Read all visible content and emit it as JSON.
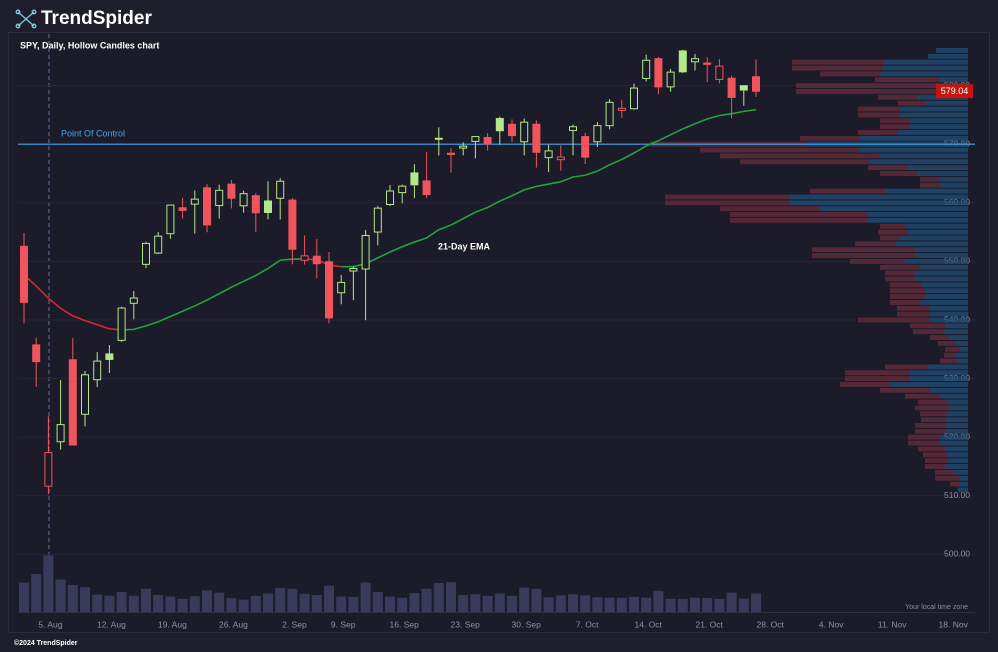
{
  "chart_data": {
    "type": "candlestick",
    "logo": "TrendSpider",
    "title": "SPY, Daily, Hollow Candles chart",
    "footer": "©2024 TrendSpider",
    "timezone_note": "Your local time zone",
    "categories": [
      null,
      null,
      "5. Aug",
      null,
      null,
      null,
      null,
      "12. Aug",
      null,
      null,
      null,
      null,
      "19. Aug",
      null,
      null,
      null,
      null,
      "26. Aug",
      null,
      null,
      null,
      null,
      "2. Sep",
      null,
      null,
      null,
      "9. Sep",
      null,
      null,
      null,
      null,
      "16. Sep",
      null,
      null,
      null,
      null,
      "23. Sep",
      null,
      null,
      null,
      null,
      "30. Sep",
      null,
      null,
      null,
      null,
      "7. Oct",
      null,
      null,
      null,
      null,
      "14. Oct",
      null,
      null,
      null,
      null,
      "21. Oct",
      null,
      null,
      null,
      null,
      "28. Oct",
      null,
      null,
      null,
      null,
      "4. Nov",
      null,
      null,
      null,
      null,
      "11. Nov",
      null,
      null,
      null,
      null,
      "18. Nov",
      null
    ],
    "open": [
      552.57,
      535.75,
      511.64,
      519.22,
      533.21,
      523.91,
      529.81,
      534.21,
      536.53,
      542.85,
      549.5,
      551.42,
      554.73,
      559.15,
      559.77,
      562.56,
      559.53,
      563.18,
      559.49,
      561.21,
      560.31,
      560.77,
      560.47,
      550.2,
      550.89,
      549.94,
      544.65,
      548.36,
      548.7,
      555.01,
      559.71,
      561.74,
      565.1,
      563.74,
      571.01,
      568.46,
      569.34,
      570.48,
      571.14,
      574.38,
      573.39,
      570.42,
      573.4,
      567.71,
      567.36,
      572.35,
      571.3,
      570.42,
      573.16,
      575.77,
      576.05,
      581.22,
      584.59,
      579.78,
      585.91,
      584.07,
      583.85,
      581.05,
      581.26,
      579.98,
      581.51,
      null,
      null,
      null,
      null,
      null,
      null,
      null,
      null,
      null,
      null,
      null,
      null,
      null,
      null,
      null,
      null,
      null
    ],
    "high": [
      554.87,
      536.99,
      523.58,
      529.75,
      536.95,
      531.29,
      534.51,
      535.73,
      542.28,
      544.96,
      553.36,
      555.02,
      559.61,
      560.84,
      562.11,
      563.18,
      563.09,
      563.91,
      562.06,
      561.65,
      563.68,
      564.2,
      560.81,
      554.43,
      553.8,
      551.6,
      547.71,
      549.15,
      555.36,
      559.4,
      563.03,
      563.11,
      566.58,
      568.69,
      572.88,
      569.31,
      570.33,
      571.36,
      571.89,
      574.71,
      574.22,
      574.38,
      574.06,
      569.9,
      569.8,
      573.36,
      571.96,
      573.78,
      577.71,
      577.58,
      580.33,
      585.27,
      584.9,
      582.83,
      586.12,
      585.39,
      584.85,
      584.5,
      581.71,
      580.06,
      584.46,
      null,
      null,
      null,
      null,
      null,
      null,
      null,
      null,
      null,
      null,
      null,
      null,
      null,
      null,
      null,
      null,
      null
    ],
    "low": [
      539.43,
      528.6,
      510.27,
      517.87,
      518.66,
      521.84,
      528.56,
      530.95,
      536.28,
      540.12,
      548.88,
      551.26,
      553.86,
      557.33,
      554.73,
      554.98,
      557.29,
      559.05,
      558.32,
      555.04,
      557.18,
      557.14,
      549.51,
      549.46,
      547.1,
      539.44,
      542.68,
      543.38,
      539.96,
      552.74,
      559.45,
      559.9,
      560.79,
      560.83,
      568.08,
      565.17,
      568.1,
      567.6,
      568.91,
      569.9,
      570.42,
      568.08,
      566.0,
      565.27,
      565.49,
      568.1,
      566.63,
      569.53,
      572.55,
      574.49,
      575.91,
      580.73,
      578.54,
      578.96,
      582.16,
      582.58,
      580.6,
      580.38,
      574.41,
      576.57,
      578.08,
      null,
      null,
      null,
      null,
      null,
      null,
      null,
      null,
      null,
      null,
      null,
      null,
      null,
      null,
      null,
      null,
      null
    ],
    "close": [
      543.01,
      532.9,
      517.38,
      522.15,
      518.66,
      530.65,
      532.99,
      533.27,
      542.04,
      543.75,
      553.07,
      554.31,
      559.61,
      558.7,
      560.62,
      556.22,
      562.13,
      560.79,
      561.56,
      558.3,
      558.35,
      563.68,
      552.08,
      550.95,
      549.61,
      540.36,
      546.41,
      548.79,
      554.42,
      559.09,
      562.01,
      562.84,
      563.07,
      561.4,
      570.98,
      568.25,
      569.67,
      571.3,
      570.04,
      572.3,
      571.47,
      573.76,
      568.62,
      568.86,
      567.82,
      572.98,
      567.8,
      573.17,
      577.14,
      576.13,
      579.58,
      584.32,
      579.78,
      582.3,
      582.35,
      584.59,
      583.63,
      583.32,
      577.99,
      579.24,
      579.04,
      null,
      null,
      null,
      null,
      null,
      null,
      null,
      null,
      null,
      null,
      null,
      null,
      null,
      null,
      null,
      null,
      null
    ],
    "volume": [
      76,
      98,
      146,
      84,
      70,
      64,
      45,
      42,
      52,
      42,
      60,
      44,
      40,
      34,
      41,
      56,
      50,
      36,
      32,
      42,
      48,
      62,
      60,
      47,
      44,
      68,
      40,
      39,
      76,
      52,
      40,
      37,
      49,
      60,
      75,
      77,
      44,
      46,
      42,
      48,
      42,
      63,
      60,
      38,
      43,
      46,
      43,
      38,
      37,
      37,
      39,
      37,
      55,
      34,
      34,
      37,
      36,
      34,
      50,
      35,
      48,
      null,
      null,
      null,
      null,
      null,
      null,
      null,
      null,
      null,
      null,
      null,
      null,
      null,
      null,
      null,
      null,
      null
    ],
    "vlim": [
      0,
      150
    ],
    "ema": {
      "name": "21-Day EMA",
      "up_color": "#22a33c",
      "down_color": "#d8282c",
      "values": [
        547.7,
        545.8,
        543.7,
        542.0,
        540.7,
        539.9,
        539.2,
        538.5,
        538.3,
        538.4,
        539.0,
        539.7,
        540.6,
        541.5,
        542.4,
        543.4,
        544.5,
        545.6,
        546.6,
        547.6,
        548.8,
        550.2,
        550.4,
        550.4,
        550.3,
        549.4,
        549.1,
        549.1,
        549.6,
        550.6,
        551.6,
        552.5,
        553.3,
        554.0,
        555.4,
        556.2,
        557.3,
        558.4,
        559.2,
        560.3,
        561.2,
        562.2,
        562.8,
        563.2,
        563.6,
        564.4,
        564.7,
        565.4,
        566.5,
        567.4,
        568.5,
        569.7,
        570.6,
        571.6,
        572.6,
        573.5,
        574.3,
        574.9,
        575.2,
        575.6,
        575.9,
        null,
        null,
        null,
        null,
        null,
        null,
        null,
        null,
        null,
        null,
        null,
        null,
        null,
        null,
        null,
        null,
        null
      ]
    },
    "poc": {
      "label": "Point Of Control",
      "value": 570,
      "color": "#3fa6ec"
    },
    "up_color": "#b3e98a",
    "down_color": "#f0555c",
    "volume_color": "#3a3b5a",
    "profile": {
      "prices": [
        586,
        585,
        584,
        583,
        582,
        581,
        580,
        579,
        578,
        577,
        576,
        575,
        574,
        573,
        572,
        571,
        570,
        569,
        568,
        567,
        566,
        565,
        564,
        563,
        562,
        561,
        560,
        559,
        558,
        557,
        556,
        555,
        554,
        553,
        552,
        551,
        550,
        549,
        548,
        547,
        546,
        545,
        544,
        543,
        542,
        541,
        540,
        539,
        538,
        537,
        536,
        535,
        534,
        533,
        532,
        531,
        530,
        529,
        528,
        527,
        526,
        525,
        524,
        523,
        522,
        521,
        520,
        519,
        518,
        517,
        516,
        515,
        514,
        513,
        512,
        511
      ],
      "up": [
        32,
        40,
        85,
        85,
        88,
        28,
        33,
        33,
        50,
        43,
        68,
        68,
        58,
        58,
        70,
        108,
        163,
        108,
        88,
        98,
        60,
        50,
        28,
        28,
        83,
        178,
        178,
        148,
        100,
        100,
        63,
        60,
        68,
        73,
        53,
        53,
        63,
        48,
        53,
        53,
        46,
        43,
        43,
        48,
        38,
        38,
        38,
        23,
        25,
        18,
        12,
        8,
        12,
        10,
        40,
        58,
        58,
        78,
        38,
        28,
        20,
        18,
        20,
        22,
        23,
        23,
        28,
        28,
        23,
        20,
        20,
        23,
        15,
        8,
        8,
        10
      ],
      "down": [
        0,
        0,
        91,
        91,
        60,
        65,
        139,
        139,
        40,
        27,
        42,
        42,
        30,
        30,
        40,
        60,
        155,
        160,
        160,
        130,
        40,
        38,
        20,
        20,
        75,
        125,
        125,
        100,
        138,
        138,
        25,
        30,
        20,
        40,
        103,
        103,
        55,
        40,
        30,
        30,
        32,
        35,
        35,
        30,
        33,
        33,
        72,
        35,
        30,
        20,
        18,
        15,
        12,
        18,
        43,
        65,
        65,
        50,
        50,
        35,
        30,
        35,
        28,
        25,
        30,
        30,
        32,
        32,
        27,
        25,
        23,
        20,
        18,
        25,
        10,
        0
      ],
      "xlim": [
        0,
        330
      ],
      "up_color": "#1f4f78",
      "down_color": "#5e2a38"
    },
    "ylim": [
      490,
      590
    ],
    "yticks": [
      {
        "value": 500,
        "label": "500.00"
      },
      {
        "value": 510,
        "label": "510.00"
      },
      {
        "value": 520,
        "label": "520.00"
      },
      {
        "value": 530,
        "label": "530.00"
      },
      {
        "value": 540,
        "label": "540.00"
      },
      {
        "value": 550,
        "label": "550.00"
      },
      {
        "value": 560,
        "label": "560.00"
      },
      {
        "value": 570,
        "label": "570.00"
      },
      {
        "value": 580,
        "label": "580.00"
      }
    ],
    "grid": true
  }
}
